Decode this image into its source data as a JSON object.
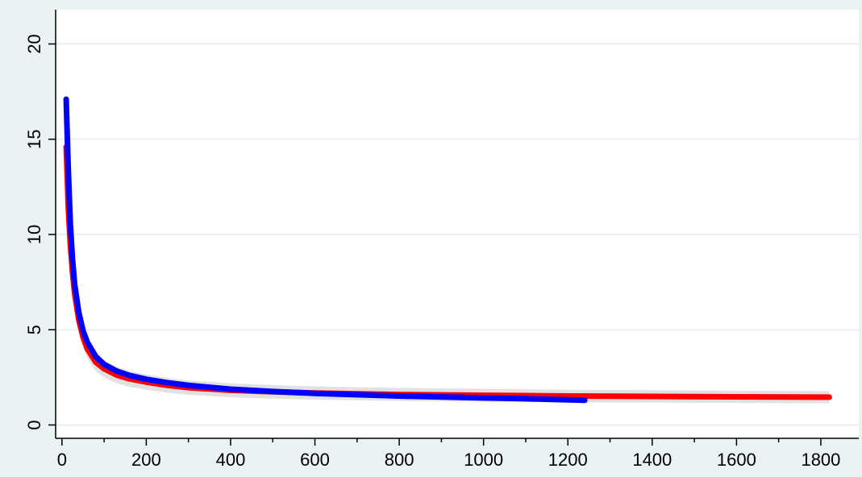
{
  "colors": {
    "page_background": "#eaf2f3",
    "plot_background": "#ffffff",
    "grid": "#e3ecee",
    "axis": "#000000",
    "confidence_band": "#d9d9d9"
  },
  "chart_data": {
    "type": "line",
    "title": "",
    "xlabel": "",
    "ylabel": "",
    "xlim": [
      -15,
      1890
    ],
    "ylim": [
      -0.7,
      21.8
    ],
    "x_ticks": [
      0,
      200,
      400,
      600,
      800,
      1000,
      1200,
      1400,
      1600,
      1800
    ],
    "x_minor_step": 100,
    "y_ticks": [
      0,
      5,
      10,
      15,
      20
    ],
    "grid": true,
    "legend": "none",
    "series": [
      {
        "color": "#ff0000",
        "band_halfwidth": 0.28,
        "x": [
          10,
          15,
          20,
          25,
          30,
          40,
          50,
          60,
          80,
          100,
          130,
          160,
          200,
          250,
          300,
          400,
          500,
          600,
          800,
          1000,
          1200,
          1400,
          1600,
          1820
        ],
        "y": [
          14.6,
          11.4,
          9.4,
          8.0,
          6.9,
          5.5,
          4.6,
          4.0,
          3.3,
          2.95,
          2.62,
          2.42,
          2.25,
          2.08,
          1.96,
          1.82,
          1.74,
          1.68,
          1.6,
          1.56,
          1.52,
          1.5,
          1.48,
          1.46
        ]
      },
      {
        "color": "#0000ff",
        "band_halfwidth": 0,
        "x": [
          10,
          12,
          15,
          20,
          25,
          30,
          40,
          50,
          60,
          80,
          100,
          130,
          160,
          200,
          250,
          300,
          400,
          500,
          600,
          800,
          1000,
          1100,
          1240
        ],
        "y": [
          17.1,
          15.6,
          13.4,
          10.5,
          8.7,
          7.4,
          5.9,
          4.95,
          4.35,
          3.6,
          3.18,
          2.83,
          2.6,
          2.4,
          2.22,
          2.08,
          1.88,
          1.76,
          1.66,
          1.52,
          1.42,
          1.38,
          1.3
        ]
      }
    ]
  }
}
